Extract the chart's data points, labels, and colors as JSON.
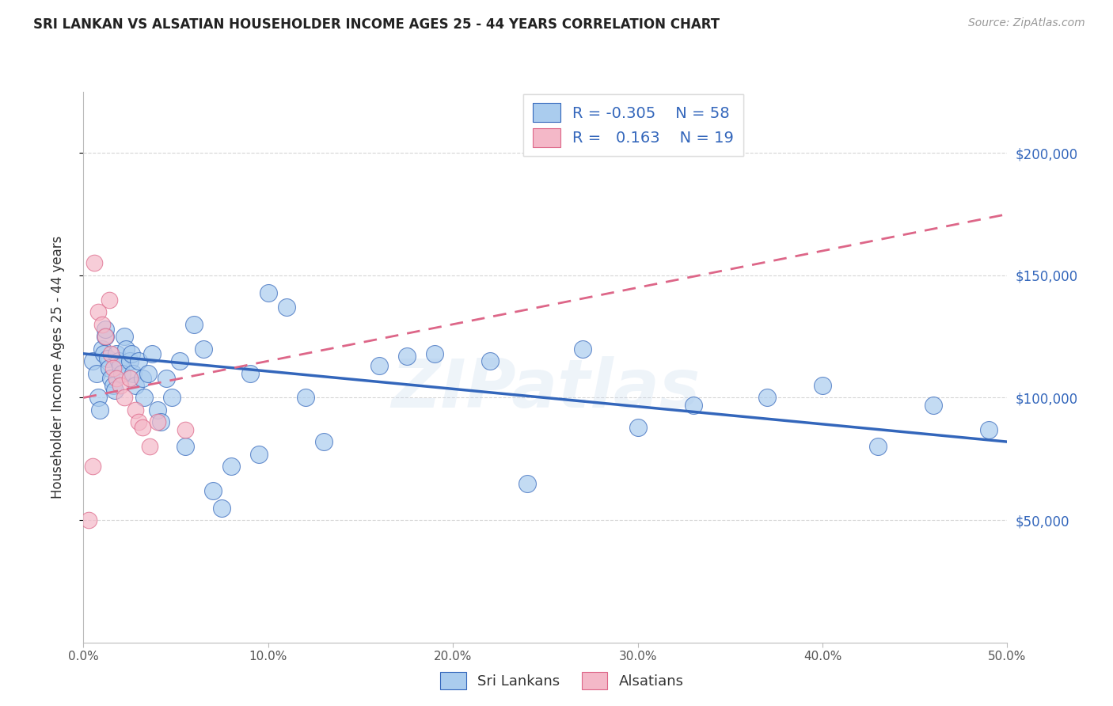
{
  "title": "SRI LANKAN VS ALSATIAN HOUSEHOLDER INCOME AGES 25 - 44 YEARS CORRELATION CHART",
  "source": "Source: ZipAtlas.com",
  "ylabel": "Householder Income Ages 25 - 44 years",
  "yticks": [
    50000,
    100000,
    150000,
    200000
  ],
  "ytick_labels": [
    "$50,000",
    "$100,000",
    "$150,000",
    "$200,000"
  ],
  "xlim": [
    0.0,
    0.5
  ],
  "ylim": [
    0,
    225000
  ],
  "sri_lankans_R": -0.305,
  "sri_lankans_N": 58,
  "alsatians_R": 0.163,
  "alsatians_N": 19,
  "sl_color": "#aaccee",
  "al_color": "#f4b8c8",
  "sl_line_color": "#3366bb",
  "al_line_color": "#dd6688",
  "right_label_color": "#3366bb",
  "watermark": "ZIPatlas",
  "sl_x": [
    0.005,
    0.007,
    0.008,
    0.009,
    0.01,
    0.011,
    0.012,
    0.012,
    0.013,
    0.014,
    0.015,
    0.016,
    0.017,
    0.018,
    0.019,
    0.02,
    0.021,
    0.022,
    0.023,
    0.025,
    0.026,
    0.027,
    0.028,
    0.03,
    0.032,
    0.033,
    0.035,
    0.037,
    0.04,
    0.042,
    0.045,
    0.048,
    0.052,
    0.055,
    0.06,
    0.065,
    0.07,
    0.075,
    0.08,
    0.09,
    0.095,
    0.1,
    0.11,
    0.12,
    0.13,
    0.16,
    0.175,
    0.19,
    0.22,
    0.24,
    0.27,
    0.3,
    0.33,
    0.37,
    0.4,
    0.43,
    0.46,
    0.49
  ],
  "sl_y": [
    115000,
    110000,
    100000,
    95000,
    120000,
    118000,
    125000,
    128000,
    116000,
    112000,
    108000,
    105000,
    103000,
    118000,
    115000,
    113000,
    110000,
    125000,
    120000,
    115000,
    118000,
    110000,
    105000,
    115000,
    108000,
    100000,
    110000,
    118000,
    95000,
    90000,
    108000,
    100000,
    115000,
    80000,
    130000,
    120000,
    62000,
    55000,
    72000,
    110000,
    77000,
    143000,
    137000,
    100000,
    82000,
    113000,
    117000,
    118000,
    115000,
    65000,
    120000,
    88000,
    97000,
    100000,
    105000,
    80000,
    97000,
    87000
  ],
  "al_x": [
    0.003,
    0.005,
    0.006,
    0.008,
    0.01,
    0.012,
    0.014,
    0.015,
    0.016,
    0.018,
    0.02,
    0.022,
    0.025,
    0.028,
    0.03,
    0.032,
    0.036,
    0.04,
    0.055
  ],
  "al_y": [
    50000,
    72000,
    155000,
    135000,
    130000,
    125000,
    140000,
    118000,
    112000,
    108000,
    105000,
    100000,
    108000,
    95000,
    90000,
    88000,
    80000,
    90000,
    87000
  ],
  "sl_trend_x0": 0.0,
  "sl_trend_x1": 0.5,
  "sl_trend_y0": 118000,
  "sl_trend_y1": 82000,
  "al_trend_x0": 0.0,
  "al_trend_x1": 0.5,
  "al_trend_y0": 100000,
  "al_trend_y1": 175000
}
